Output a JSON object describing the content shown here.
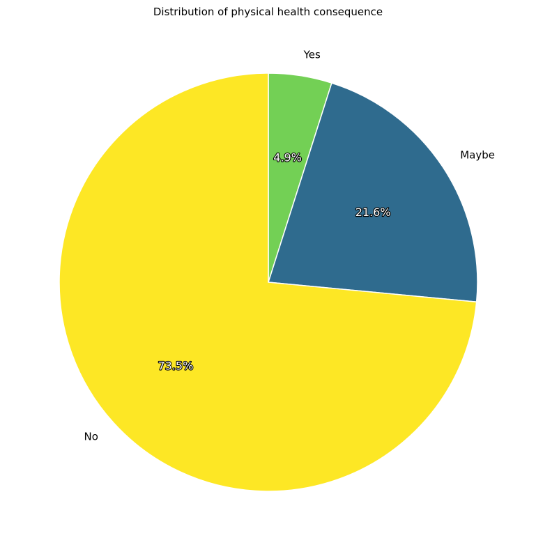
{
  "chart_data": {
    "type": "pie",
    "title": "Distribution of physical health consequence",
    "start_angle_deg": 90,
    "direction": "clockwise",
    "slices": [
      {
        "label": "Yes",
        "value": 4.9,
        "pct_label": "4.9%",
        "color": "#73d055"
      },
      {
        "label": "Maybe",
        "value": 21.6,
        "pct_label": "21.6%",
        "color": "#2f6b8e"
      },
      {
        "label": "No",
        "value": 73.5,
        "pct_label": "73.5%",
        "color": "#fde725"
      }
    ],
    "edge_color": "#ffffff"
  }
}
